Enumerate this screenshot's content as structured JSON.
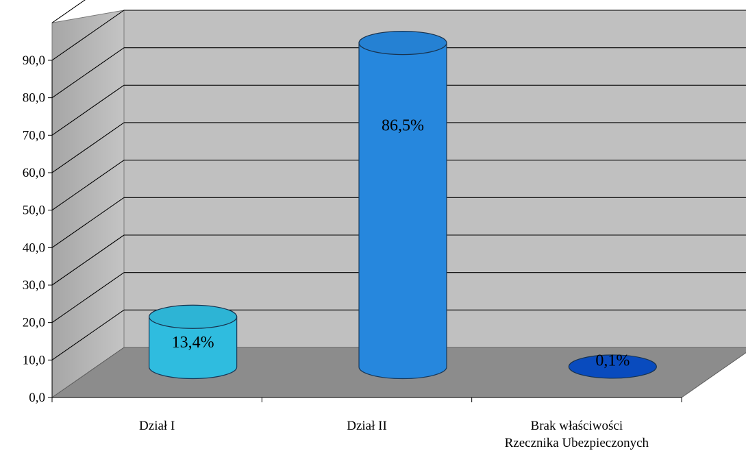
{
  "chart_data": {
    "type": "bar",
    "style": "3d-cylinder",
    "categories": [
      [
        "Dział I"
      ],
      [
        "Dział II"
      ],
      [
        "Brak właściwości",
        "Rzecznika Ubezpieczonych"
      ]
    ],
    "values": [
      13.4,
      86.5,
      0.1
    ],
    "data_labels": [
      "13,4%",
      "86,5%",
      "0,1%"
    ],
    "y_ticks": [
      "0,0",
      "10,0",
      "20,0",
      "30,0",
      "40,0",
      "50,0",
      "60,0",
      "70,0",
      "80,0",
      "90,0"
    ],
    "ylim": [
      0,
      100
    ],
    "grid": true,
    "legend": "none",
    "colors": {
      "bars": [
        "#33ccf2",
        "#2a93f0",
        "#0a55d8"
      ],
      "back_wall": "#c0c0c0",
      "side_wall": "#b8b8b8",
      "floor": "#8c8c8c"
    }
  }
}
